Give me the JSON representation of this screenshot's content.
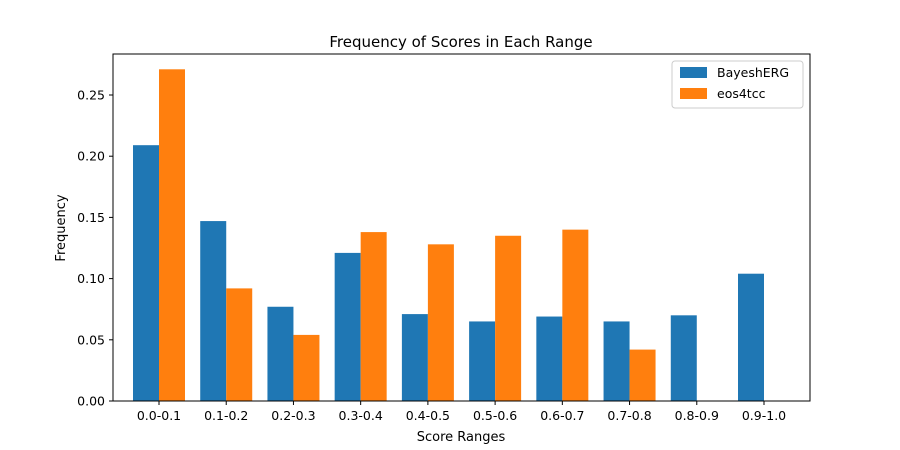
{
  "chart_data": {
    "type": "bar",
    "title": "Frequency of Scores in Each Range",
    "xlabel": "Score Ranges",
    "ylabel": "Frequency",
    "ylim": [
      0,
      0.2835
    ],
    "yticks": [
      "0.00",
      "0.05",
      "0.10",
      "0.15",
      "0.20",
      "0.25"
    ],
    "categories": [
      "0.0-0.1",
      "0.1-0.2",
      "0.2-0.3",
      "0.3-0.4",
      "0.4-0.5",
      "0.5-0.6",
      "0.6-0.7",
      "0.7-0.8",
      "0.8-0.9",
      "0.9-1.0"
    ],
    "series": [
      {
        "name": "BayeshERG",
        "color": "#1f77b4",
        "values": [
          0.209,
          0.147,
          0.077,
          0.121,
          0.071,
          0.065,
          0.069,
          0.065,
          0.07,
          0.104
        ]
      },
      {
        "name": "eos4tcc",
        "color": "#ff7f0e",
        "values": [
          0.271,
          0.092,
          0.054,
          0.138,
          0.128,
          0.135,
          0.14,
          0.042,
          0.0,
          0.0
        ]
      }
    ],
    "grid": false,
    "legend": "top-right"
  }
}
